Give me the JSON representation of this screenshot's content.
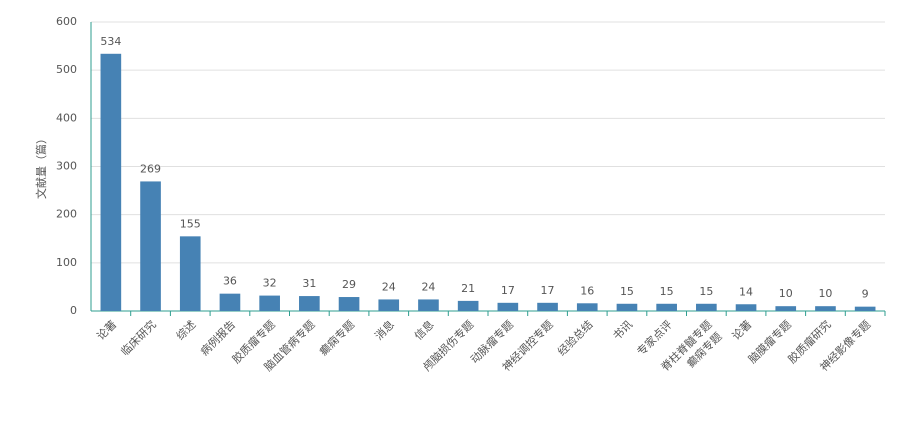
{
  "chart_data": {
    "type": "bar",
    "y_label": "文献量（篇）",
    "categories": [
      "论著",
      "临床研究",
      "综述",
      "病例报告",
      "胶质瘤专题",
      "脑血管病专题",
      "癫痫专题",
      "消息",
      "信息",
      "颅脑损伤专题",
      "动脉瘤专题",
      "神经调控专题",
      "经验总结",
      "书讯",
      "专家点评",
      [
        "脊柱脊髓专题",
        "癫痫专题"
      ],
      "论著",
      "脑膜瘤专题",
      "胶质瘤研究",
      "神经影像专题"
    ],
    "values": [
      534,
      269,
      155,
      36,
      32,
      31,
      29,
      24,
      24,
      21,
      17,
      17,
      16,
      15,
      15,
      15,
      14,
      10,
      10,
      9
    ],
    "color": "#4682b4",
    "axis_color": "#2e9e8f",
    "ylim": [
      0,
      600
    ],
    "yticks": [
      0,
      100,
      200,
      300,
      400,
      500,
      600
    ],
    "grid": true
  }
}
